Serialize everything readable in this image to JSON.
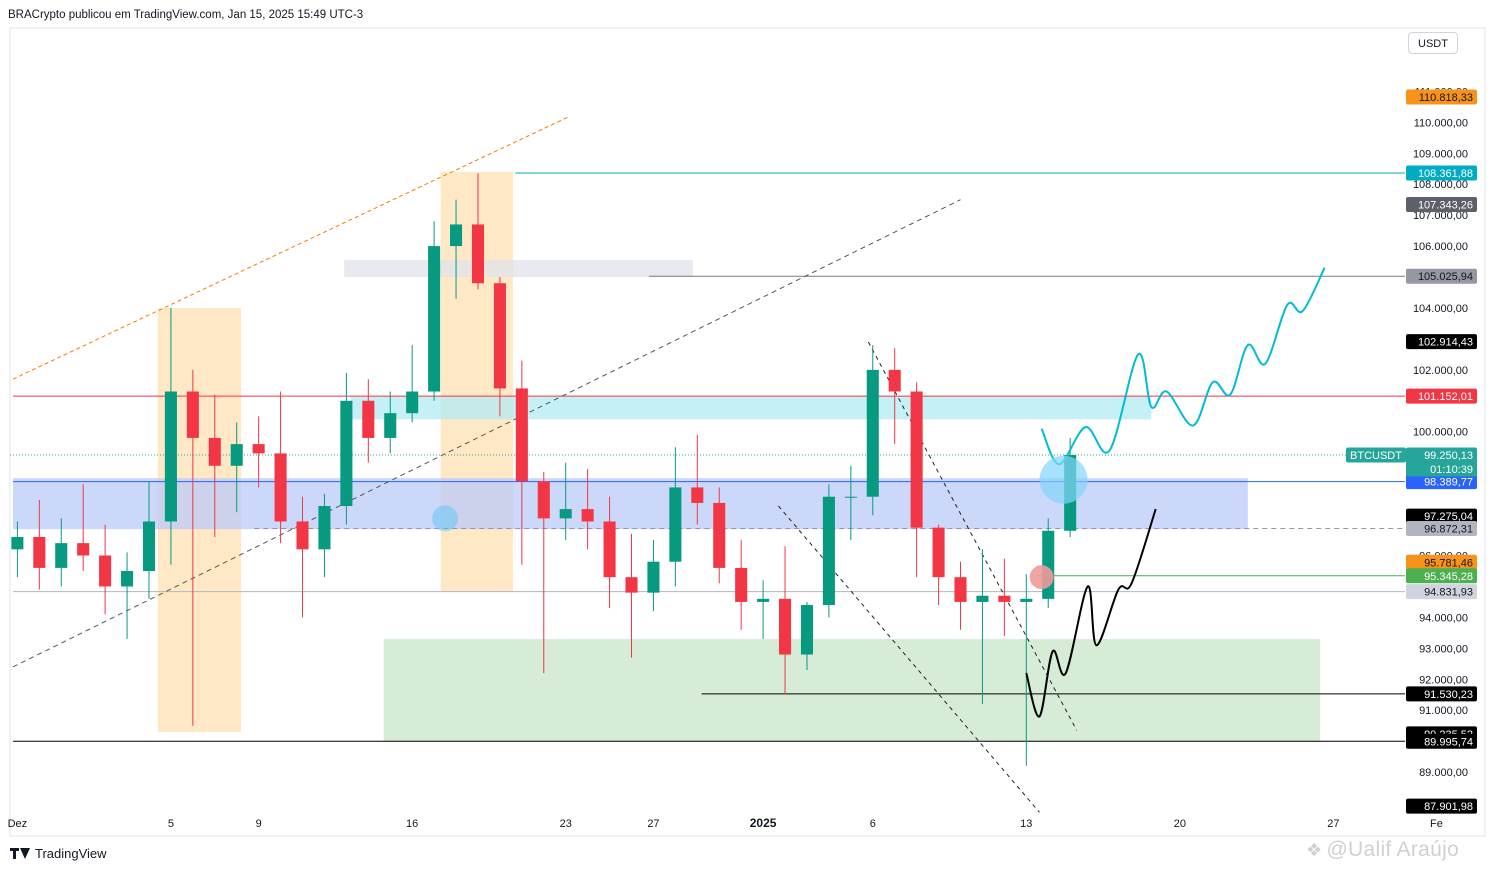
{
  "header": {
    "published_text": "BRACrypto publicou em TradingView.com, Jan 15, 2025 15:49 UTC-3"
  },
  "toolbar": {
    "currency_label": "USDT"
  },
  "footer": {
    "brand_label": "TradingView",
    "watermark_text": "@Ualif Araújo"
  },
  "colors": {
    "up": "#089981",
    "down": "#f23645",
    "forecast": "#00bcd4",
    "price_line": "#26a69a",
    "orange_zone": "#ffe0b2",
    "blue_zone": "#bbcbf7",
    "cyan_zone": "#b2ebf2",
    "green_zone": "#c8e6c9"
  },
  "chart_data": {
    "type": "candlestick",
    "symbol": "BTCUSDT",
    "currency": "USDT",
    "ylim": [
      87000,
      111400
    ],
    "y_ticks": [
      89000,
      91000,
      92000,
      93000,
      94000,
      96000,
      97000,
      100000,
      102000,
      104000,
      106000,
      107000,
      108000,
      109000,
      110000,
      111000
    ],
    "y_tick_labels": [
      "89.000,00",
      "91.000,00",
      "92.000,00",
      "93.000,00",
      "94.000,00",
      "96.000,00",
      "97.000,00",
      "100.000,00",
      "102.000,00",
      "104.000,00",
      "106.000,00",
      "107.000,00",
      "108.000,00",
      "109.000,00",
      "110.000,00",
      "111.000,00"
    ],
    "x_range": [
      -3.2,
      59.4
    ],
    "x_ticks": [
      {
        "label": "Dez",
        "day": -3
      },
      {
        "label": "5",
        "day": 4
      },
      {
        "label": "9",
        "day": 8
      },
      {
        "label": "16",
        "day": 15
      },
      {
        "label": "23",
        "day": 22
      },
      {
        "label": "27",
        "day": 26
      },
      {
        "label": "2025",
        "day": 31
      },
      {
        "label": "6",
        "day": 36
      },
      {
        "label": "13",
        "day": 43
      },
      {
        "label": "20",
        "day": 50
      },
      {
        "label": "27",
        "day": 57
      },
      {
        "label": "Fe",
        "day": 61.7
      }
    ],
    "current_price": {
      "label": "BTCUSDT",
      "value": "99.250,13",
      "countdown": "01:10:39",
      "price": 99250.13
    },
    "price_labels": [
      {
        "text": "110.818,33",
        "price": 110818.33,
        "bg": "#f7931a",
        "fg": "#131722"
      },
      {
        "text": "108.361,88",
        "price": 108361.88,
        "bg": "#00acc1",
        "fg": "#ffffff"
      },
      {
        "text": "107.343,26",
        "price": 107343.26,
        "bg": "#5d606b",
        "fg": "#ffffff"
      },
      {
        "text": "105.025,94",
        "price": 105025.94,
        "bg": "#9598a1",
        "fg": "#131722"
      },
      {
        "text": "102.914,43",
        "price": 102914.43,
        "bg": "#000000",
        "fg": "#ffffff"
      },
      {
        "text": "101.152,01",
        "price": 101152.01,
        "bg": "#f23645",
        "fg": "#ffffff"
      },
      {
        "text": "98.389,77",
        "price": 98389.77,
        "bg": "#2962ff",
        "fg": "#ffffff"
      },
      {
        "text": "97.275,04",
        "price": 97275.04,
        "bg": "#000000",
        "fg": "#ffffff"
      },
      {
        "text": "96.872,31",
        "price": 96872.31,
        "bg": "#b2b5be",
        "fg": "#131722"
      },
      {
        "text": "95.781,46",
        "price": 95781.46,
        "bg": "#f7931a",
        "fg": "#131722"
      },
      {
        "text": "95.345,28",
        "price": 95345.28,
        "bg": "#4caf50",
        "fg": "#ffffff"
      },
      {
        "text": "94.831,93",
        "price": 94831.93,
        "bg": "#d1d4dc",
        "fg": "#131722"
      },
      {
        "text": "91.530,23",
        "price": 91530.23,
        "bg": "#000000",
        "fg": "#ffffff"
      },
      {
        "text": "90.235,52",
        "price": 90235.52,
        "bg": "#000000",
        "fg": "#ffffff"
      },
      {
        "text": "89.995,74",
        "price": 89995.74,
        "bg": "#000000",
        "fg": "#ffffff"
      },
      {
        "text": "87.901,98",
        "price": 87901.98,
        "bg": "#000000",
        "fg": "#ffffff"
      }
    ],
    "horizontal_lines": [
      {
        "price": 108361.88,
        "from_day": 19.7,
        "color": "#00acc1"
      },
      {
        "price": 105025.94,
        "from_day": 25.8,
        "color": "#787b86"
      },
      {
        "price": 101152.01,
        "from_day": -3.2,
        "color": "#f23645"
      },
      {
        "price": 98389.77,
        "from_day": -3.2,
        "color": "#2962ff"
      },
      {
        "price": 96872.31,
        "from_day": 7.8,
        "color": "#9598a1",
        "dashed": true
      },
      {
        "price": 95345.28,
        "from_day": 43.5,
        "color": "#4caf50"
      },
      {
        "price": 94831.93,
        "from_day": -3.2,
        "color": "#b2b5be"
      },
      {
        "price": 91530.23,
        "from_day": 28.2,
        "color": "#000000"
      },
      {
        "price": 89995.74,
        "from_day": -3.2,
        "color": "#000000"
      }
    ],
    "zones": [
      {
        "name": "orange-zone-dec",
        "from_day": 3.4,
        "to_day": 7.2,
        "top": 104000,
        "bottom": 90300,
        "color": "#ffe0b2"
      },
      {
        "name": "orange-zone-mid",
        "from_day": 16.3,
        "to_day": 19.6,
        "top": 108400,
        "bottom": 94850,
        "color": "#ffe0b2"
      },
      {
        "name": "grey-zone",
        "from_day": 11.9,
        "to_day": 27.8,
        "top": 105550,
        "bottom": 105000,
        "color": "#e0e3eb"
      },
      {
        "name": "cyan-zone",
        "from_day": 12.2,
        "to_day": 48.7,
        "top": 101150,
        "bottom": 100400,
        "color": "#b2ebf2"
      },
      {
        "name": "blue-zone",
        "from_day": -3.2,
        "to_day": 53.1,
        "top": 98500,
        "bottom": 96850,
        "color": "#bbcbf7"
      },
      {
        "name": "green-zone",
        "from_day": 13.7,
        "to_day": 56.4,
        "top": 93300,
        "bottom": 89990,
        "color": "#c8e6c9"
      }
    ],
    "trend_lines": [
      {
        "name": "upper-orange-dashed",
        "from": [
          -3.2,
          101700
        ],
        "to": [
          22.2,
          110200
        ],
        "color": "#f57c00",
        "dash": "4 3"
      },
      {
        "name": "lower-grey-dashed",
        "from": [
          -3.2,
          92400
        ],
        "to": [
          40.0,
          107500
        ],
        "color": "#555555",
        "dash": "5 4"
      },
      {
        "name": "channel-upper-dashed",
        "from": [
          35.8,
          102900
        ],
        "to": [
          45.3,
          90350
        ],
        "color": "#222222",
        "dash": "4 4"
      },
      {
        "name": "channel-lower-dashed",
        "from": [
          31.7,
          97600
        ],
        "to": [
          43.6,
          87700
        ],
        "color": "#222222",
        "dash": "4 4"
      }
    ],
    "forecast_paths": [
      {
        "name": "cyan-forecast",
        "color": "#00bcd4",
        "points": [
          [
            43.7,
            100100
          ],
          [
            44.5,
            98950
          ],
          [
            45.7,
            100150
          ],
          [
            46.8,
            99400
          ],
          [
            48.1,
            102500
          ],
          [
            48.7,
            100800
          ],
          [
            49.4,
            101300
          ],
          [
            50.6,
            100200
          ],
          [
            51.5,
            101600
          ],
          [
            52.3,
            101200
          ],
          [
            53.1,
            102800
          ],
          [
            53.9,
            102200
          ],
          [
            54.9,
            104100
          ],
          [
            55.6,
            103900
          ],
          [
            56.6,
            105300
          ]
        ]
      },
      {
        "name": "black-forecast",
        "color": "#000000",
        "points": [
          [
            43.0,
            92200
          ],
          [
            43.6,
            90800
          ],
          [
            44.2,
            92900
          ],
          [
            44.8,
            92200
          ],
          [
            45.8,
            95000
          ],
          [
            46.2,
            93100
          ],
          [
            47.2,
            94900
          ],
          [
            47.8,
            95100
          ],
          [
            48.9,
            97500
          ]
        ]
      }
    ],
    "markers": [
      {
        "name": "cyan-circle-small",
        "day": 16.5,
        "price": 97200,
        "r": 13,
        "color": "#4fc3f7",
        "alpha": 0.45
      },
      {
        "name": "cyan-circle-large",
        "day": 44.7,
        "price": 98450,
        "r": 24,
        "color": "#81d4fa",
        "alpha": 0.7
      },
      {
        "name": "red-circle",
        "day": 43.7,
        "price": 95300,
        "r": 12,
        "color": "#ef9a9a",
        "alpha": 0.9
      }
    ],
    "candles": [
      {
        "day": -3.0,
        "open": 96200,
        "high": 97100,
        "low": 95300,
        "close": 96600
      },
      {
        "day": -2.0,
        "open": 96600,
        "high": 97800,
        "low": 94900,
        "close": 95600
      },
      {
        "day": -1.0,
        "open": 95600,
        "high": 97200,
        "low": 95000,
        "close": 96400
      },
      {
        "day": 0.0,
        "open": 96400,
        "high": 98300,
        "low": 95500,
        "close": 96000
      },
      {
        "day": 1.0,
        "open": 96000,
        "high": 97000,
        "low": 94100,
        "close": 95000
      },
      {
        "day": 2.0,
        "open": 95000,
        "high": 96100,
        "low": 93300,
        "close": 95500
      },
      {
        "day": 3.0,
        "open": 95500,
        "high": 98400,
        "low": 94600,
        "close": 97100
      },
      {
        "day": 4.0,
        "open": 97100,
        "high": 104000,
        "low": 95700,
        "close": 101300
      },
      {
        "day": 5.0,
        "open": 101300,
        "high": 102000,
        "low": 90500,
        "close": 99800
      },
      {
        "day": 6.0,
        "open": 99800,
        "high": 101200,
        "low": 96600,
        "close": 98900
      },
      {
        "day": 7.0,
        "open": 98900,
        "high": 100300,
        "low": 97400,
        "close": 99600
      },
      {
        "day": 8.0,
        "open": 99600,
        "high": 100500,
        "low": 98200,
        "close": 99300
      },
      {
        "day": 9.0,
        "open": 99300,
        "high": 101300,
        "low": 96400,
        "close": 97100
      },
      {
        "day": 10.0,
        "open": 97100,
        "high": 97900,
        "low": 94000,
        "close": 96200
      },
      {
        "day": 11.0,
        "open": 96200,
        "high": 98000,
        "low": 95300,
        "close": 97600
      },
      {
        "day": 12.0,
        "open": 97600,
        "high": 101900,
        "low": 97000,
        "close": 101000
      },
      {
        "day": 13.0,
        "open": 101000,
        "high": 101700,
        "low": 99000,
        "close": 99800
      },
      {
        "day": 14.0,
        "open": 99800,
        "high": 101300,
        "low": 99300,
        "close": 100600
      },
      {
        "day": 15.0,
        "open": 100600,
        "high": 102800,
        "low": 100300,
        "close": 101300
      },
      {
        "day": 16.0,
        "open": 101300,
        "high": 106800,
        "low": 101000,
        "close": 106000
      },
      {
        "day": 17.0,
        "open": 106000,
        "high": 107500,
        "low": 104300,
        "close": 106700
      },
      {
        "day": 18.0,
        "open": 106700,
        "high": 108350,
        "low": 104600,
        "close": 104800
      },
      {
        "day": 19.0,
        "open": 104800,
        "high": 105000,
        "low": 100500,
        "close": 101400
      },
      {
        "day": 20.0,
        "open": 101400,
        "high": 102300,
        "low": 95700,
        "close": 98400
      },
      {
        "day": 21.0,
        "open": 98400,
        "high": 98700,
        "low": 92200,
        "close": 97200
      },
      {
        "day": 22.0,
        "open": 97200,
        "high": 99000,
        "low": 96500,
        "close": 97500
      },
      {
        "day": 23.0,
        "open": 97500,
        "high": 98800,
        "low": 96200,
        "close": 97100
      },
      {
        "day": 24.0,
        "open": 97100,
        "high": 97900,
        "low": 94300,
        "close": 95300
      },
      {
        "day": 25.0,
        "open": 95300,
        "high": 96700,
        "low": 92700,
        "close": 94800
      },
      {
        "day": 26.0,
        "open": 94800,
        "high": 96500,
        "low": 94200,
        "close": 95800
      },
      {
        "day": 27.0,
        "open": 95800,
        "high": 99500,
        "low": 95000,
        "close": 98200
      },
      {
        "day": 28.0,
        "open": 98200,
        "high": 99900,
        "low": 97000,
        "close": 97700
      },
      {
        "day": 29.0,
        "open": 97700,
        "high": 98200,
        "low": 95100,
        "close": 95600
      },
      {
        "day": 30.0,
        "open": 95600,
        "high": 96500,
        "low": 93600,
        "close": 94500
      },
      {
        "day": 31.0,
        "open": 94500,
        "high": 95200,
        "low": 93300,
        "close": 94600
      },
      {
        "day": 32.0,
        "open": 94600,
        "high": 96300,
        "low": 91500,
        "close": 92800
      },
      {
        "day": 33.0,
        "open": 92800,
        "high": 94500,
        "low": 92300,
        "close": 94400
      },
      {
        "day": 34.0,
        "open": 94400,
        "high": 98300,
        "low": 94000,
        "close": 97900
      },
      {
        "day": 35.0,
        "open": 97900,
        "high": 98900,
        "low": 96500,
        "close": 97900
      },
      {
        "day": 36.0,
        "open": 97900,
        "high": 102800,
        "low": 97300,
        "close": 102000
      },
      {
        "day": 37.0,
        "open": 102000,
        "high": 102700,
        "low": 99600,
        "close": 101300
      },
      {
        "day": 38.0,
        "open": 101300,
        "high": 101600,
        "low": 95300,
        "close": 96900
      },
      {
        "day": 39.0,
        "open": 96900,
        "high": 97000,
        "low": 94400,
        "close": 95300
      },
      {
        "day": 40.0,
        "open": 95300,
        "high": 95800,
        "low": 93600,
        "close": 94500
      },
      {
        "day": 41.0,
        "open": 94500,
        "high": 96200,
        "low": 91200,
        "close": 94700
      },
      {
        "day": 42.0,
        "open": 94700,
        "high": 95900,
        "low": 93400,
        "close": 94500
      },
      {
        "day": 43.0,
        "open": 94500,
        "high": 95400,
        "low": 89200,
        "close": 94600
      },
      {
        "day": 44.0,
        "open": 94600,
        "high": 97200,
        "low": 94300,
        "close": 96800
      },
      {
        "day": 45.0,
        "open": 96800,
        "high": 99800,
        "low": 96600,
        "close": 99250
      }
    ]
  }
}
